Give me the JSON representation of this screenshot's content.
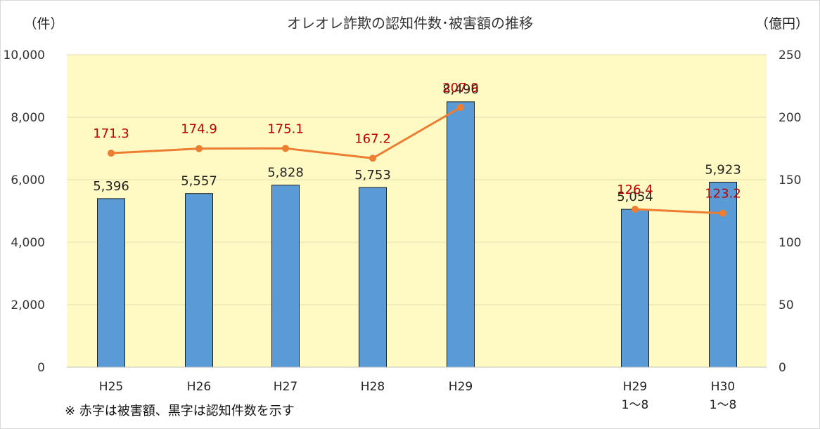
{
  "chart_data": {
    "type": "bar",
    "title": "オレオレ詐欺の認知件数･被害額の推移",
    "left_axis_unit": "（件）",
    "right_axis_unit": "（億円）",
    "ylim": [
      0,
      10000
    ],
    "y2lim": [
      0,
      250
    ],
    "left_ticks": [
      {
        "value": 0,
        "label": "0"
      },
      {
        "value": 2000,
        "label": "2,000"
      },
      {
        "value": 4000,
        "label": "4,000"
      },
      {
        "value": 6000,
        "label": "6,000"
      },
      {
        "value": 8000,
        "label": "8,000"
      },
      {
        "value": 10000,
        "label": "10,000"
      }
    ],
    "right_ticks": [
      {
        "value": 0,
        "label": "0"
      },
      {
        "value": 50,
        "label": "50"
      },
      {
        "value": 100,
        "label": "100"
      },
      {
        "value": 150,
        "label": "150"
      },
      {
        "value": 200,
        "label": "200"
      },
      {
        "value": 250,
        "label": "250"
      }
    ],
    "categories": [
      {
        "label": "H25",
        "sub": ""
      },
      {
        "label": "H26",
        "sub": ""
      },
      {
        "label": "H27",
        "sub": ""
      },
      {
        "label": "H28",
        "sub": ""
      },
      {
        "label": "H29",
        "sub": ""
      },
      {
        "label": "H29",
        "sub": "1～8"
      },
      {
        "label": "H30",
        "sub": "1～8"
      }
    ],
    "series": [
      {
        "type": "bar",
        "axis": "left",
        "color": "#5b9bd5",
        "values": [
          5396,
          5557,
          5828,
          5753,
          8496,
          5054,
          5923
        ],
        "labels": [
          "5,396",
          "5,557",
          "5,828",
          "5,753",
          "8,496",
          "5,054",
          "5,923"
        ]
      },
      {
        "type": "line",
        "axis": "right",
        "color": "#ed7d31",
        "label_color": "#c00000",
        "segments": [
          [
            0,
            1,
            2,
            3,
            4
          ],
          [
            5,
            6
          ]
        ],
        "values": [
          171.3,
          174.9,
          175.1,
          167.2,
          207.9,
          126.4,
          123.2
        ],
        "labels": [
          "171.3",
          "174.9",
          "175.1",
          "167.2",
          "207.9",
          "126.4",
          "123.2"
        ]
      }
    ],
    "grid": true,
    "plot_background": "#fff9c4",
    "note": "※ 赤字は被害額、黒字は認知件数を示す"
  }
}
